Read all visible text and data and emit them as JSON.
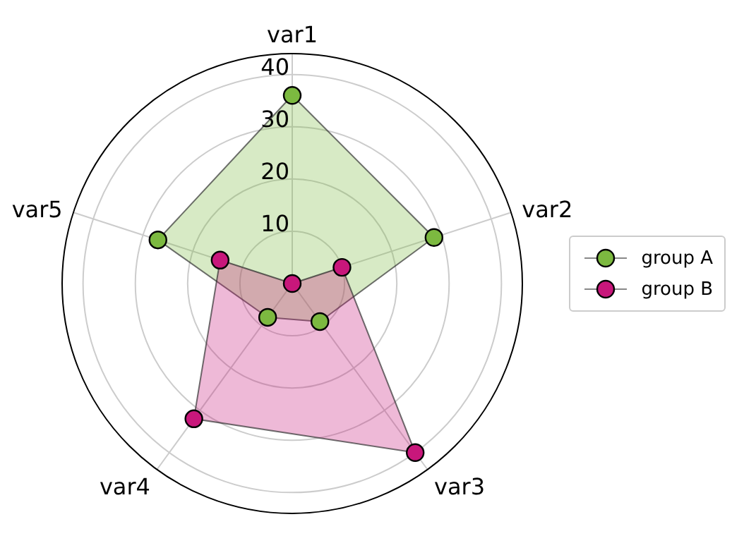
{
  "chart_data": {
    "type": "radar",
    "categories": [
      "var1",
      "var2",
      "var3",
      "var4",
      "var5"
    ],
    "series": [
      {
        "name": "group A",
        "color": "#7cb940",
        "values": [
          36,
          28.5,
          9,
          8,
          27
        ]
      },
      {
        "name": "group B",
        "color": "#c8177b",
        "values": [
          0,
          10,
          40,
          32,
          14.5
        ]
      }
    ],
    "ylim": [
      0,
      44
    ],
    "yticks": [
      10,
      20,
      30,
      40
    ],
    "grid": true,
    "legend": "right",
    "marker": "circle"
  }
}
